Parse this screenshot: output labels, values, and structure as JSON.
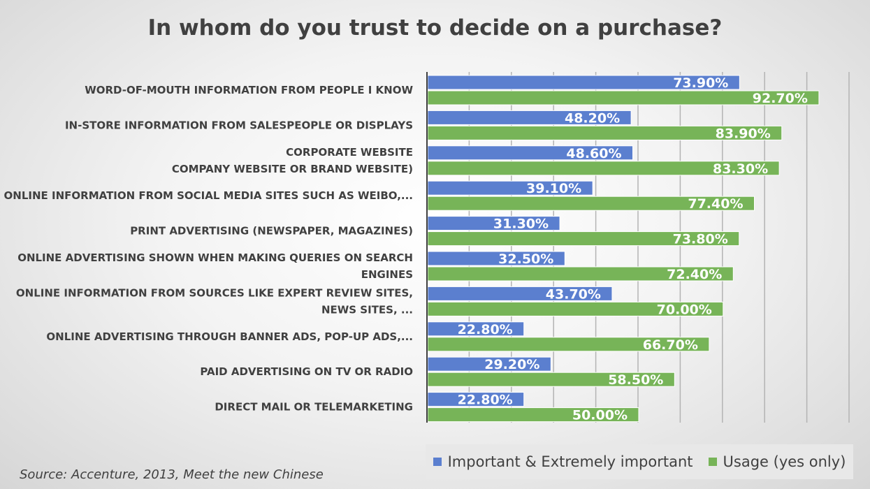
{
  "chart_data": {
    "type": "bar",
    "orientation": "horizontal",
    "title": "In whom do you trust to decide on a purchase?",
    "categories": [
      [
        "WORD-OF-MOUTH INFORMATION FROM PEOPLE I KNOW"
      ],
      [
        "IN-STORE INFORMATION FROM SALESPEOPLE OR DISPLAYS"
      ],
      [
        "CORPORATE WEBSITE",
        "COMPANY WEBSITE OR BRAND WEBSITE)"
      ],
      [
        "ONLINE INFORMATION FROM SOCIAL MEDIA SITES SUCH AS WEIBO,..."
      ],
      [
        "PRINT ADVERTISING (NEWSPAPER, MAGAZINES)"
      ],
      [
        "ONLINE ADVERTISING SHOWN WHEN MAKING QUERIES ON SEARCH",
        "ENGINES"
      ],
      [
        "ONLINE INFORMATION FROM SOURCES LIKE EXPERT REVIEW SITES,",
        "NEWS SITES, ..."
      ],
      [
        "ONLINE ADVERTISING THROUGH BANNER ADS, POP-UP ADS,..."
      ],
      [
        "PAID ADVERTISING ON TV OR RADIO"
      ],
      [
        "DIRECT MAIL OR TELEMARKETING"
      ]
    ],
    "series": [
      {
        "name": "Important & Extremely important",
        "color": "#5b7fcf",
        "values": [
          73.9,
          48.2,
          48.6,
          39.1,
          31.3,
          32.5,
          43.7,
          22.8,
          29.2,
          22.8
        ],
        "labels": [
          "73.90%",
          "48.20%",
          "48.60%",
          "39.10%",
          "31.30%",
          "32.50%",
          "43.70%",
          "22.80%",
          "29.20%",
          "22.80%"
        ]
      },
      {
        "name": "Usage (yes only)",
        "color": "#77b458",
        "values": [
          92.7,
          83.9,
          83.3,
          77.4,
          73.8,
          72.4,
          70.0,
          66.7,
          58.5,
          50.0
        ],
        "labels": [
          "92.70%",
          "83.90%",
          "83.30%",
          "77.40%",
          "73.80%",
          "72.40%",
          "70.00%",
          "66.70%",
          "58.50%",
          "50.00%"
        ]
      }
    ],
    "xlim": [
      0,
      100
    ],
    "grid": true,
    "legend_position": "bottom-right",
    "source": "Source: Accenture, 2013, Meet the new Chinese"
  }
}
